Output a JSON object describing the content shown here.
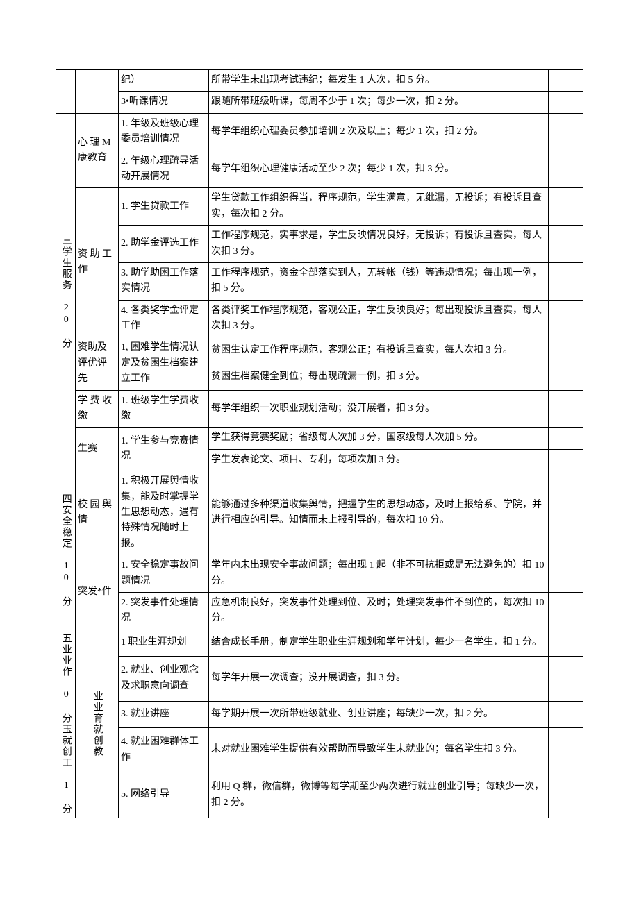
{
  "rows": {
    "r1c3": "纪）",
    "r1c4": "所带学生未出现考试违纪；每发生 1 人次，扣 5 分。",
    "r2c3": "3•听课情况",
    "r2c4": "跟随所带班级听课，每周不少于 1 次；每少一次，扣 2 分。",
    "s3_header": "三学生服务 20 分",
    "s3g1": "心 理 M康教育",
    "r3c3": "1. 年级及班级心理委员培训情况",
    "r3c4": "每学年组织心理委员参加培训 2 次及以上；每少 1 次，扣 2 分。",
    "r4c3": "2. 年级心理疏导活动开展情况",
    "r4c4": "每学年组织心理健康活动至少 2 次；每少 1 次，扣 3 分。",
    "s3g2": "资 助 工作",
    "r5c3": "1. 学生贷款工作",
    "r5c4": "学生贷款工作组织得当，程序规范，学生满意，无纰漏，无投诉；有投诉且查实，每次扣 2 分。",
    "r6c3": "2. 助学金评选工作",
    "r6c4": "工作程序规范，实事求是，学生反映情况良好，无投诉；有投诉且查实，每人次扣 3 分。",
    "r7c3": "3. 助学助困工作落实情况",
    "r7c4": "工作程序规范，资金全部落实到人，无转帐（钱）等违规情况；每出现一例，扣 5 分。",
    "r8c3": "4. 各类奖学金评定工作",
    "r8c4": "各类评奖工作程序规范，客观公正，学生反映良好；每出现投诉且查实，每人次扣 3 分。",
    "s3g3": "资助及评优评先",
    "r9c3": "1, 困难学生情况认定及贫困生档案建立工作",
    "r9c4": "贫困生认定工作程序规范，客观公正；有投诉且查实，每人次扣 3 分。",
    "r10c4": "贫困生档案健全到位；每出现疏漏一例，扣 3 分。",
    "s3g4": "学 费 收缴",
    "r11c3": "1. 班级学生学费收缴",
    "r11c4": "每学年组织一次职业规划活动；没开展者，扣 3 分。",
    "s3g5": "生赛",
    "r12c3": "1. 学生参与竞赛情况",
    "r12c4": "学生获得竞赛奖励；省级每人次加 3 分，国家级每人次加 5 分。",
    "r13c4": "学生发表论文、项目、专利，每项次加 3 分。",
    "s4_header": "四安全稳定 10 分",
    "s4g1": "校 园 舆情",
    "r14c3": "1. 积极开展舆情收集，能及时掌握学生思想动态，遇有特殊情况随时上报。",
    "r14c4": "能够通过多种渠道收集舆情，把握学生的思想动态，及时上报给系、学院，并进行相应的引导。知情而未上报引导的，每次扣 10 分。",
    "s4g2": "突发*件",
    "r15c3": "1. 安全稳定事故问题情况",
    "r15c4": "学年内未出现安全事故问题；每出现 1 起（非不可抗拒或是无法避免的）扣 10 分。",
    "r16c3": "2. 突发事件处理情况",
    "r16c4": "应急机制良好，突发事件处理到位、及时；处理突发事件不到位的，每次扣 10 分。",
    "s5_header": "五业业作 0 分玉就创工 1 分",
    "s5g1": "业业育就创教",
    "r17c3": "1 职业生涯规划",
    "r17c4": "结合成长手册，制定学生职业生涯规划和学年计划，每少一名学生，扣 1 分。",
    "r18c3": "2. 就业、创业观念及求职意向调查",
    "r18c4": "每学年开展一次调查；没开展调查，扣 3 分。",
    "r19c3": "3. 就业讲座",
    "r19c4": "每学期开展一次所带班级就业、创业讲座；每缺少一次，扣 2 分。",
    "r20c3": "4. 就业困难群体工作",
    "r20c4": "未对就业困难学生提供有效帮助而导致学生未就业的；每名学生扣 3 分。",
    "r21c3": "5. 网络引导",
    "r21c4": "利用 Q 群，微信群，微博等每学期至少两次进行就业创业引导；每缺少一次，扣 2 分。"
  }
}
